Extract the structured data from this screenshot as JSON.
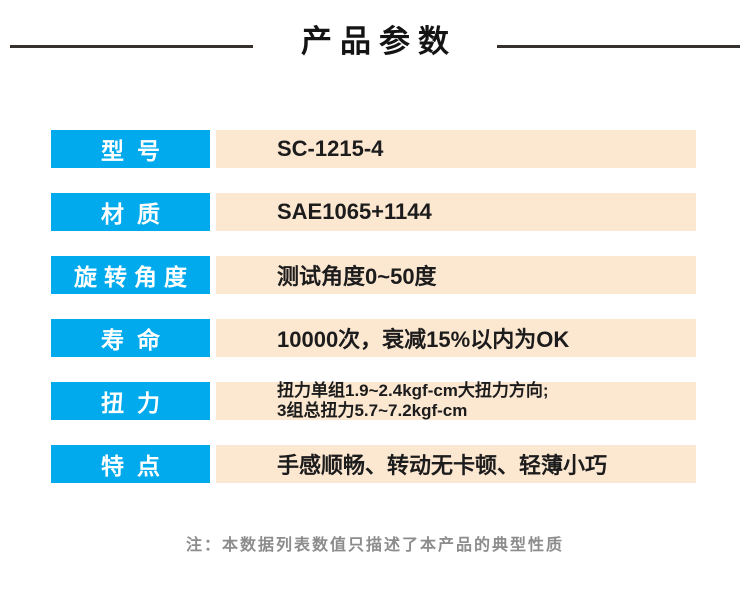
{
  "header": {
    "title": "产品参数"
  },
  "table": {
    "rows": [
      {
        "label": "型号",
        "value": "SC-1215-4"
      },
      {
        "label": "材质",
        "value": "SAE1065+1144"
      },
      {
        "label": "旋转角度",
        "value": "测试角度0~50度"
      },
      {
        "label": "寿命",
        "value": "10000次，衰减15%以内为OK"
      },
      {
        "label": "扭力",
        "value_lines": [
          "扭力单组1.9~2.4kgf-cm大扭力方向;",
          "3组总扭力5.7~7.2kgf-cm"
        ]
      },
      {
        "label": "特点",
        "value": "手感顺畅、转动无卡顿、轻薄小巧"
      }
    ]
  },
  "footer": {
    "note": "注：本数据列表数值只描述了本产品的典型性质"
  },
  "colors": {
    "label_bg": "#00aaec",
    "value_bg": "#fce7d1",
    "header_rule": "#35312e",
    "note_text": "#8c8c8c",
    "text": "#1c1c1c"
  }
}
